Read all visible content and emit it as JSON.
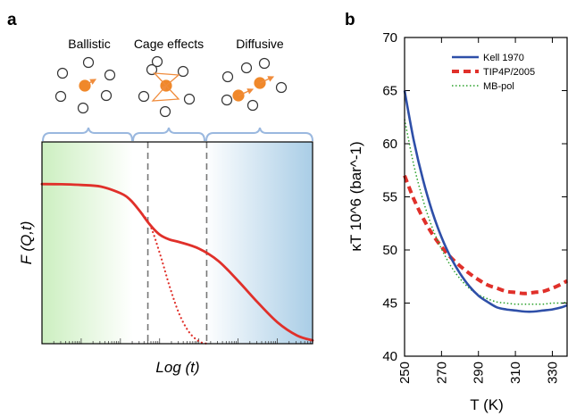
{
  "panels": {
    "a": {
      "letter": "a"
    },
    "b": {
      "letter": "b"
    }
  },
  "colors": {
    "curve_red": "#e0302a",
    "kell_blue": "#2e4fa8",
    "mbpol_green": "#2aa02a",
    "divider_gray": "#777777",
    "brace_blue": "#9ab8df",
    "ball_orange": "#f0882a",
    "arrow_orange": "#f08c3c",
    "bg_green": "#ccefc0",
    "bg_blue": "#a9cde6"
  },
  "chart_data": [
    {
      "type": "line",
      "title": "",
      "regimes": [
        "Ballistic",
        "Cage effects",
        "Diffusive"
      ],
      "xlabel": "Log (t)",
      "ylabel": "F (Q,t)",
      "x_ticks": "none",
      "y_ticks": "none",
      "grid": false,
      "dividers_logt": [
        -0.3,
        1.2
      ],
      "series": [
        {
          "style": "solid",
          "x": [
            -3.0,
            -2.5,
            -2.0,
            -1.5,
            -1.0,
            -0.75,
            -0.5,
            -0.25,
            0.0,
            0.25,
            0.5,
            1.0,
            1.5,
            2.0,
            2.5,
            3.0,
            3.5,
            3.9
          ],
          "y": [
            0.965,
            0.964,
            0.96,
            0.95,
            0.91,
            0.87,
            0.8,
            0.72,
            0.66,
            0.63,
            0.615,
            0.575,
            0.5,
            0.38,
            0.25,
            0.13,
            0.05,
            0.02
          ]
        },
        {
          "style": "dotted",
          "x": [
            -0.5,
            -0.25,
            0.0,
            0.25,
            0.5,
            0.75,
            1.0,
            1.2
          ],
          "y": [
            0.8,
            0.72,
            0.55,
            0.35,
            0.18,
            0.07,
            0.015,
            0.0
          ]
        }
      ]
    },
    {
      "type": "line",
      "title": "",
      "xlabel": "T (K)",
      "ylabel": "κT 10^6 (bar^-1)",
      "xlim": [
        250,
        338
      ],
      "ylim": [
        40,
        70
      ],
      "x_ticks": [
        250,
        270,
        290,
        310,
        330
      ],
      "y_ticks": [
        40,
        45,
        50,
        55,
        60,
        65,
        70
      ],
      "grid": false,
      "legend_position": "top-right",
      "series": [
        {
          "name": "Kell 1970",
          "style": "solid",
          "x": [
            250,
            255,
            260,
            265,
            270,
            275,
            280,
            285,
            290,
            295,
            300,
            305,
            310,
            315,
            320,
            325,
            330,
            335,
            338
          ],
          "y": [
            65.0,
            60.3,
            56.6,
            53.6,
            51.2,
            49.3,
            47.8,
            46.6,
            45.7,
            45.1,
            44.6,
            44.4,
            44.3,
            44.2,
            44.2,
            44.3,
            44.4,
            44.6,
            44.8
          ]
        },
        {
          "name": "TIP4P/2005",
          "style": "dashed",
          "x": [
            250,
            255,
            260,
            265,
            270,
            275,
            280,
            285,
            290,
            295,
            300,
            305,
            310,
            315,
            320,
            325,
            330,
            335,
            338
          ],
          "y": [
            57.0,
            54.8,
            53.0,
            51.5,
            50.3,
            49.3,
            48.5,
            47.8,
            47.2,
            46.7,
            46.4,
            46.1,
            46.0,
            45.9,
            46.0,
            46.1,
            46.4,
            46.8,
            47.1
          ]
        },
        {
          "name": "MB-pol",
          "style": "dotted",
          "x": [
            250,
            255,
            260,
            265,
            270,
            275,
            280,
            285,
            290,
            295,
            300,
            305,
            310,
            315,
            320,
            325,
            330,
            335,
            338
          ],
          "y": [
            62.3,
            58.0,
            54.7,
            52.1,
            50.1,
            48.5,
            47.3,
            46.4,
            45.8,
            45.4,
            45.1,
            45.0,
            44.9,
            44.9,
            44.9,
            44.9,
            45.0,
            45.0,
            45.1
          ]
        }
      ]
    }
  ]
}
